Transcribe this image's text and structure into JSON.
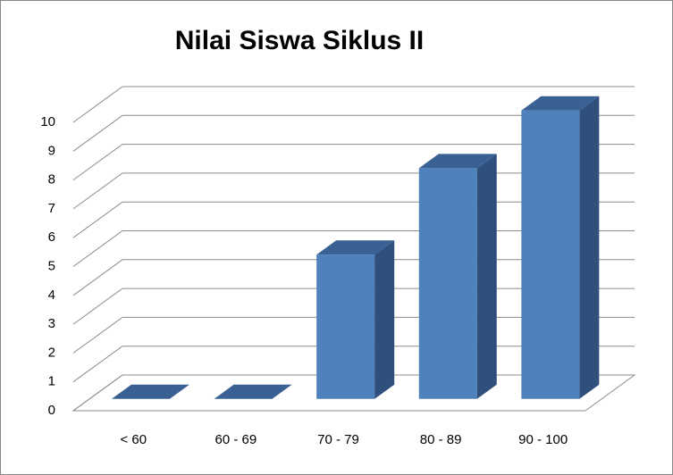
{
  "chart_data": {
    "type": "bar3d",
    "title": "Nilai Siswa Siklus II",
    "categories": [
      "< 60",
      "60 - 69",
      "70 - 79",
      "80 - 89",
      "90 - 100"
    ],
    "values": [
      0,
      0,
      5,
      8,
      10
    ],
    "color": "#4f81bd",
    "ylim": [
      0,
      10
    ],
    "yticks": [
      0,
      1,
      2,
      3,
      4,
      5,
      6,
      7,
      8,
      9,
      10
    ],
    "grid": true
  }
}
